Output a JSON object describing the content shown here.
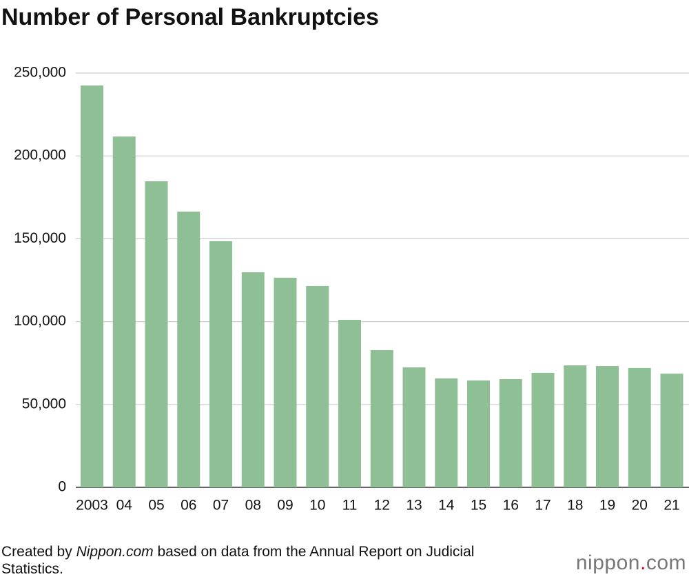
{
  "chart_data": {
    "type": "bar",
    "title": "Number of Personal Bankruptcies",
    "categories": [
      "2003",
      "04",
      "05",
      "06",
      "07",
      "08",
      "09",
      "10",
      "11",
      "12",
      "13",
      "14",
      "15",
      "16",
      "17",
      "18",
      "19",
      "20",
      "21"
    ],
    "values": [
      242500,
      211700,
      184700,
      166400,
      148500,
      129800,
      126500,
      121500,
      101100,
      82800,
      72400,
      65700,
      64500,
      65300,
      69100,
      73600,
      73200,
      72000,
      68600
    ],
    "color": "#8fbf95",
    "ylim": [
      0,
      250000
    ],
    "yticks": [
      0,
      {
        "value": 50000,
        "label": "50,000"
      },
      {
        "value": 100000,
        "label": "100,000"
      },
      {
        "value": 150000,
        "label": "150,000"
      },
      {
        "value": 200000,
        "label": "200,000"
      },
      {
        "value": 250000,
        "label": "250,000"
      }
    ],
    "grid": true
  },
  "source": [
    "Created by ",
    "Nippon.com",
    " based on data from the Annual Report on Judicial Statistics."
  ],
  "logo": [
    "nippon",
    ".",
    "com"
  ]
}
